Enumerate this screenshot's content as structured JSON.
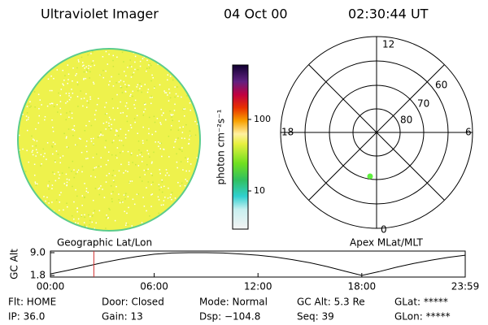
{
  "header": {
    "instrument": "Ultraviolet Imager",
    "date": "04 Oct 00",
    "time": "02:30:44 UT"
  },
  "colorbar": {
    "label": "photon cm⁻²s⁻¹",
    "ticks": [
      "100",
      "10"
    ]
  },
  "polar": {
    "mlt_labels": [
      "12",
      "18",
      "6",
      "0"
    ],
    "lat_labels": [
      "60",
      "70",
      "80"
    ]
  },
  "orbit": {
    "left_label": "Geographic Lat/Lon",
    "right_label": "Apex MLat/MLT",
    "ylabel": "GC Alt",
    "ylim": [
      1.8,
      9.0
    ],
    "yticks": [
      {
        "value": 9.0,
        "label": "9.0"
      },
      {
        "value": 1.8,
        "label": "1.8"
      }
    ],
    "xlim": [
      0,
      23.98
    ],
    "xticks": [
      {
        "value": 0,
        "label": "00:00"
      },
      {
        "value": 6,
        "label": "06:00"
      },
      {
        "value": 12,
        "label": "12:00"
      },
      {
        "value": 18,
        "label": "18:00"
      },
      {
        "value": 23.98,
        "label": "23:59"
      }
    ],
    "x": [
      0,
      1,
      2,
      3,
      4,
      5,
      6,
      7,
      8,
      9,
      10,
      11,
      12,
      13,
      14,
      15,
      16,
      17,
      18,
      19,
      20,
      21,
      22,
      23,
      23.98
    ],
    "values": [
      2.3,
      3.4,
      4.6,
      5.8,
      6.9,
      7.8,
      8.5,
      8.9,
      9.0,
      9.0,
      8.9,
      8.6,
      8.2,
      7.6,
      6.8,
      5.8,
      4.6,
      3.2,
      1.8,
      3.0,
      4.4,
      5.6,
      6.6,
      7.5,
      8.2
    ],
    "marker_x": 2.51,
    "marker_color": "#d03030"
  },
  "status": {
    "row1": [
      "Flt: HOME",
      "Door: Closed",
      "Mode: Normal",
      "GC Alt: 5.3 Re",
      "GLat: *****"
    ],
    "row2": [
      "IP: 36.0",
      "Gain: 13",
      "Dsp: −104.8",
      "Seq: 39",
      "GLon: *****"
    ]
  }
}
